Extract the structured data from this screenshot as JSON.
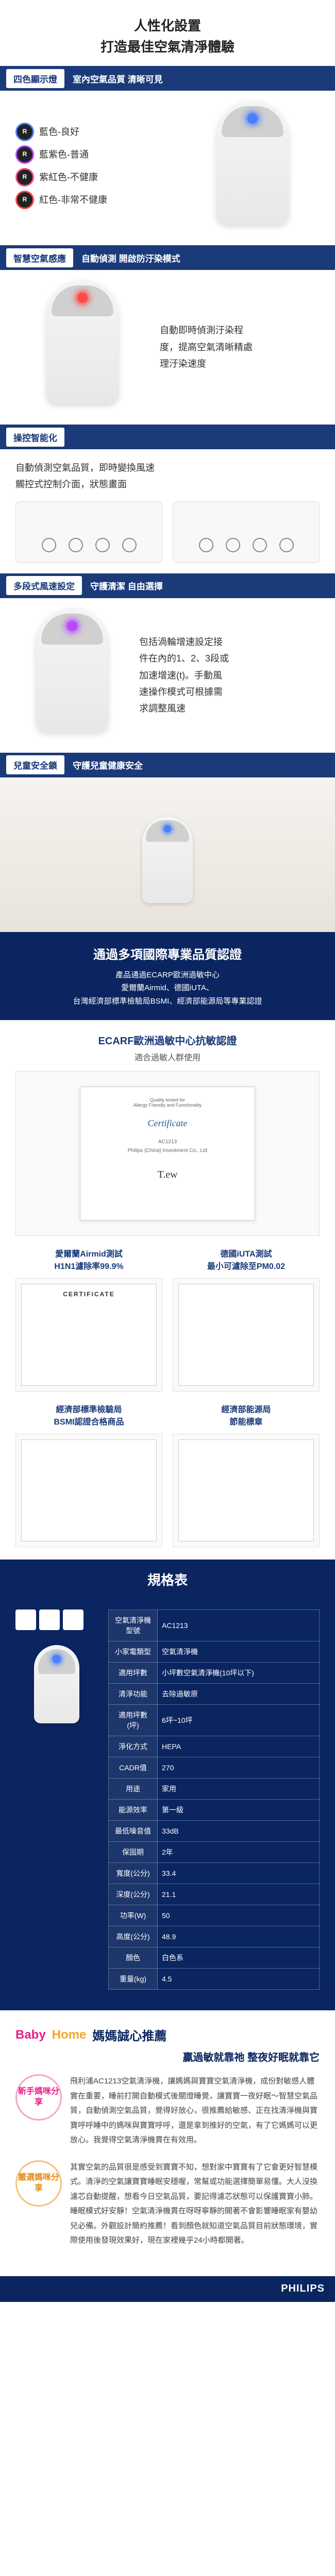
{
  "colors": {
    "navy": "#0a2560",
    "bar_navy": "#1a3a7a",
    "pink": "#e91e8c",
    "orange": "#f5a623",
    "ring_blue": "#4a7fff",
    "ring_purple": "#b84aff",
    "ring_pink": "#ff4a9a",
    "ring_red": "#ff4a4a"
  },
  "hero": {
    "line1": "人性化設置",
    "line2": "打造最佳空氣清淨體驗"
  },
  "sections": [
    {
      "label": "四色顯示燈",
      "sub": "室內空氣品質 清晰可見"
    },
    {
      "label": "智慧空氣感應",
      "sub": "自動偵測 開啟防汙染模式"
    },
    {
      "label": "操控智能化",
      "sub": ""
    },
    {
      "label": "多段式風速設定",
      "sub": "守護清潔 自由選擇"
    },
    {
      "label": "兒童安全鎖",
      "sub": "守護兒童健康安全"
    }
  ],
  "color_lights": [
    {
      "ring": "#4a7fff",
      "text": "藍色-良好"
    },
    {
      "ring": "#b84aff",
      "text": "藍紫色-普通"
    },
    {
      "ring": "#ff4a9a",
      "text": "紫紅色-不健康"
    },
    {
      "ring": "#ff4a4a",
      "text": "紅色-非常不健康"
    }
  ],
  "sensor": {
    "line1": "自動即時偵測汙染程",
    "line2": "度，提高空氣清晰精處",
    "line3": "理汙染速度"
  },
  "smart": {
    "line1": "自動偵測空氣品質，即時變換風速",
    "line2": "觸控式控制介面，狀態畫面"
  },
  "fan": {
    "l1": "包括渦輪增速設定接",
    "l2": "件在內的1、2、3段或",
    "l3": "加速增速(t)。手動風",
    "l4": "速操作模式可根據需",
    "l5": "求調整風速"
  },
  "cert_banner": {
    "title": "通過多項國際專業品質認證",
    "l1": "產品通過ECARP歐洲過敏中心",
    "l2": "愛爾蘭Airmid、德國iUTA、",
    "l3": "台灣經濟部標準檢驗局BSMI、經濟部能源局等專業認證"
  },
  "cert_main": {
    "title": "ECARF歐洲過敏中心抗敏認證",
    "sub": "適合過敏人群使用",
    "paper_title": "Certificate",
    "paper_model": "AC1213",
    "paper_brand": "Philips (China) Investment Co., Ltd"
  },
  "cert_cols": [
    {
      "t1": "愛爾蘭Airmid測試",
      "t2": "H1N1濾除率99.9%",
      "head": "CERTIFICATE"
    },
    {
      "t1": "德國iUTA測試",
      "t2": "最小可濾除至PM0.02",
      "head": ""
    }
  ],
  "cert_cols2": [
    {
      "t1": "經濟部標準檢驗局",
      "t2": "BSMI認證合格商品",
      "head": ""
    },
    {
      "t1": "經濟部能源局",
      "t2": "節能標章",
      "head": ""
    }
  ],
  "spec": {
    "title": "規格表",
    "rows": [
      [
        "空氣清淨機型號",
        "AC1213"
      ],
      [
        "小家電類型",
        "空氣清淨機"
      ],
      [
        "適用坪數",
        "小坪數空氣清淨機(10坪以下)"
      ],
      [
        "清淨功能",
        "去除過敏原"
      ],
      [
        "適用坪數(坪)",
        "6坪~10坪"
      ],
      [
        "淨化方式",
        "HEPA"
      ],
      [
        "CADR值",
        "270"
      ],
      [
        "用途",
        "家用"
      ],
      [
        "能源效率",
        "第一級"
      ],
      [
        "最低噪音值",
        "33dB"
      ],
      [
        "保固期",
        "2年"
      ],
      [
        "寬度(公分)",
        "33.4"
      ],
      [
        "深度(公分)",
        "21.1"
      ],
      [
        "功率(W)",
        "50"
      ],
      [
        "高度(公分)",
        "48.9"
      ],
      [
        "顏色",
        "白色系"
      ],
      [
        "重量(kg)",
        "4.5"
      ]
    ]
  },
  "baby": {
    "b1": "Baby",
    "b2": "Home",
    "rest": "媽媽誠心推薦",
    "sub": "贏過敏就靠祂 整夜好眠就靠它",
    "reviews": [
      {
        "tag": "新手媽咪分享",
        "cls": "pink",
        "text": "飛利浦AC1213空氣清淨機，讓媽媽與寶寶空氣清淨機，成份對敏感人體實在重要，睡前打開自動模式後關燈睡覺，讓寶寶一夜好眠～智慧空氣品質，自動偵測空氣品質，覺得好放心，很推薦給敏感、正在找清淨機與寶寶呼呼睡中的媽咪與寶寶呼呼，還是拿到推好的空氣，有了它媽媽可以更放心。我覺得空氣清淨機貫在有效用。"
      },
      {
        "tag": "嚴選媽咪分享",
        "cls": "orange",
        "text": "其實空氣的品質很是感受到寶寶不知，想對家中寶寶有了它會更好智慧模式。清淨的空氣讓寶寶睡眠安穩喔，常幫或功能選擇簡單易懂。大人沒換濾芯自動提醒，想看今日空氣品質，要記得濾芯狀態可以保護寶寶小肺。睡眠模式好安靜！空氣清淨機貫在呀呀寧靜的開著不會影響睡眠家有嬰幼兒必備。外觀設計簡約推薦！看到顏色就知道空氣品質目前狀態環境，實際使用後發現效果好，現在家裡幾乎24小時都開著。"
      }
    ]
  },
  "footer": {
    "brand": "PHILIPS"
  }
}
